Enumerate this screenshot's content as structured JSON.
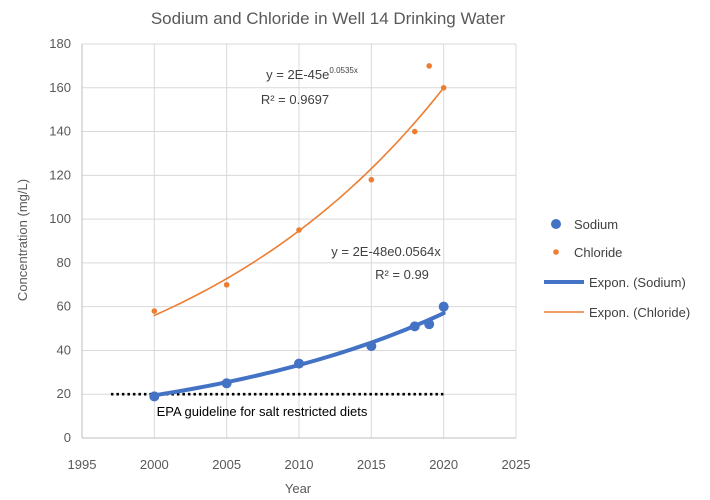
{
  "chart_data": {
    "type": "scatter",
    "title": "Sodium and Chloride in Well 14 Drinking Water",
    "xlabel": "Year",
    "ylabel": "Concentration  (mg/L)",
    "xlim": [
      1995,
      2025
    ],
    "ylim": [
      0,
      180
    ],
    "x_ticks": [
      "1995",
      "2000",
      "2005",
      "2010",
      "2015",
      "2020",
      "2025"
    ],
    "y_ticks": [
      "0",
      "20",
      "40",
      "60",
      "80",
      "100",
      "120",
      "140",
      "160",
      "180"
    ],
    "grid": "major gridlines on",
    "legend_position": "right",
    "series": [
      {
        "name": "Sodium",
        "kind": "points",
        "color": "#4472c4",
        "x": [
          2000,
          2005,
          2010,
          2015,
          2018,
          2019,
          2020
        ],
        "y": [
          19,
          25,
          34,
          42,
          51,
          52,
          60
        ]
      },
      {
        "name": "Chloride",
        "kind": "points",
        "color": "#ed7d31",
        "x": [
          2000,
          2005,
          2010,
          2015,
          2018,
          2019,
          2020
        ],
        "y": [
          58,
          70,
          95,
          118,
          140,
          170,
          160
        ]
      },
      {
        "name": "Expon. (Sodium)",
        "kind": "trendline",
        "color": "#4472c4",
        "equation": "y = 2E-48e0.0564x",
        "r2": "R² = 0.99",
        "x": [
          2000,
          2020
        ],
        "y": [
          19.5,
          57
        ]
      },
      {
        "name": "Expon. (Chloride)",
        "kind": "trendline",
        "color": "#ed7d31",
        "equation_base": "y = 2E-45e",
        "equation_exp": "0.0535x",
        "r2": "R² = 0.9697",
        "x": [
          2000,
          2020
        ],
        "y": [
          56,
          160
        ]
      }
    ],
    "guideline": {
      "value": 20,
      "x": [
        1997,
        2020
      ],
      "label": "EPA guideline for salt restricted diets"
    }
  }
}
